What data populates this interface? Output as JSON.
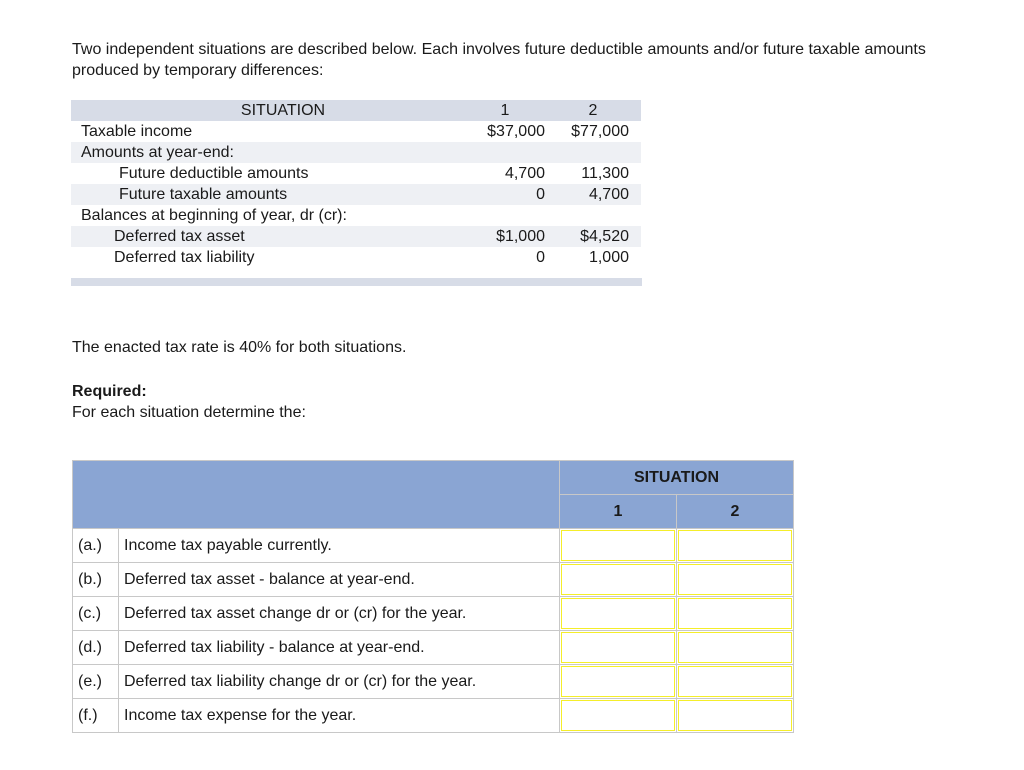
{
  "intro": "Two independent situations are described below. Each involves future deductible amounts and/or future taxable amounts produced by temporary differences:",
  "situation_table": {
    "header": {
      "label": "SITUATION",
      "col1": "1",
      "col2": "2"
    },
    "rows": [
      {
        "label": "Taxable income",
        "v1": "$37,000",
        "v2": "$77,000",
        "indent": 0
      },
      {
        "label": "Amounts at year-end:",
        "v1": "",
        "v2": "",
        "indent": 0
      },
      {
        "label": "Future deductible amounts",
        "v1": "4,700",
        "v2": "11,300",
        "indent": 1
      },
      {
        "label": "Future taxable amounts",
        "v1": "0",
        "v2": "4,700",
        "indent": 1
      },
      {
        "label": "Balances at beginning of year, dr (cr):",
        "v1": "",
        "v2": "",
        "indent": 0
      },
      {
        "label": "Deferred tax asset",
        "v1": "$1,000",
        "v2": "$4,520",
        "indent": 2
      },
      {
        "label": "Deferred tax liability",
        "v1": "0",
        "v2": "1,000",
        "indent": 2
      }
    ]
  },
  "rate_text": "The enacted tax rate is 40% for both situations.",
  "required": {
    "heading": "Required:",
    "text": "For each situation determine the:"
  },
  "answer_table": {
    "header": "SITUATION",
    "col1": "1",
    "col2": "2",
    "rows": [
      {
        "letter": "(a.)",
        "text": "Income tax payable currently.",
        "v1": "",
        "v2": ""
      },
      {
        "letter": "(b.)",
        "text": "Deferred tax asset - balance at year-end.",
        "v1": "",
        "v2": ""
      },
      {
        "letter": "(c.)",
        "text": "Deferred tax asset change dr or (cr) for the year.",
        "v1": "",
        "v2": ""
      },
      {
        "letter": "(d.)",
        "text": "Deferred tax liability - balance at year-end.",
        "v1": "",
        "v2": ""
      },
      {
        "letter": "(e.)",
        "text": "Deferred tax liability change dr or (cr) for the year.",
        "v1": "",
        "v2": ""
      },
      {
        "letter": "(f.)",
        "text": "Income tax expense for the year.",
        "v1": "",
        "v2": ""
      }
    ]
  },
  "colors": {
    "header_blue": "#8aa5d3",
    "input_border": "#f5ee2a",
    "stripe": "#eef0f4"
  }
}
